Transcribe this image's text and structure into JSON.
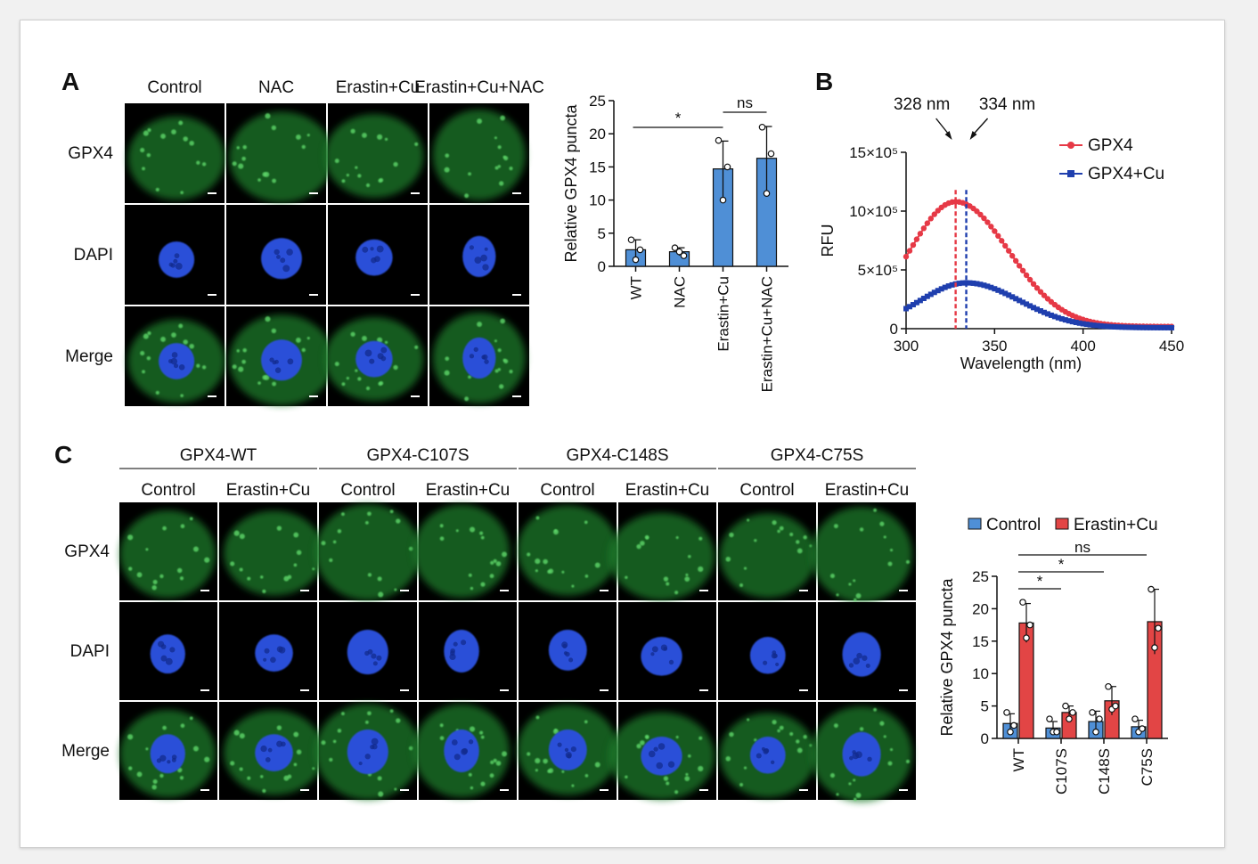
{
  "panels": {
    "a": "A",
    "b": "B",
    "c": "C"
  },
  "panel_a": {
    "columns": [
      "Control",
      "NAC",
      "Erastin+Cu",
      "Erastin+Cu+NAC"
    ],
    "rows": [
      "GPX4",
      "DAPI",
      "Merge"
    ]
  },
  "panel_c": {
    "groups": [
      "GPX4-WT",
      "GPX4-C107S",
      "GPX4-C148S",
      "GPX4-C75S"
    ],
    "columns": [
      "Control",
      "Erastin+Cu",
      "Control",
      "Erastin+Cu",
      "Control",
      "Erastin+Cu",
      "Control",
      "Erastin+Cu"
    ],
    "rows": [
      "GPX4",
      "DAPI",
      "Merge"
    ]
  },
  "colors": {
    "gpx4_label": "#4caf50",
    "dapi_label": "#2140c8",
    "bar_blue": "#4f8fd6",
    "bar_red": "#e24545",
    "line_red": "#e63946",
    "line_blue": "#1f3fae"
  },
  "chart_data": [
    {
      "id": "A-bar",
      "type": "bar",
      "categories": [
        "WT",
        "NAC",
        "Erastin+Cu",
        "Erastin+Cu+NAC"
      ],
      "values": [
        2.5,
        2.2,
        14.7,
        16.3
      ],
      "errors": [
        1.5,
        0.6,
        4.2,
        4.8
      ],
      "points": [
        [
          4,
          1,
          2.5
        ],
        [
          2.8,
          2.2,
          1.6
        ],
        [
          19,
          10,
          15
        ],
        [
          21,
          11,
          17
        ]
      ],
      "ylabel": "Relative GPX4 puncta",
      "ylim": [
        0,
        25
      ],
      "yticks": [
        0,
        5,
        10,
        15,
        20,
        25
      ],
      "significance": [
        {
          "from": 0,
          "to": 2,
          "label": "*"
        },
        {
          "from": 2,
          "to": 3,
          "label": "ns"
        }
      ]
    },
    {
      "id": "B-line",
      "type": "line",
      "xlabel": "Wavelength (nm)",
      "ylabel": "RFU",
      "xlim": [
        300,
        450
      ],
      "ylim": [
        0,
        1500000
      ],
      "xticks": [
        300,
        350,
        400,
        450
      ],
      "yticks": [
        0,
        500000,
        1000000,
        1500000
      ],
      "ytick_labels": [
        "0",
        "5×10⁵",
        "10×10⁵",
        "15×10⁵"
      ],
      "series": [
        {
          "name": "GPX4",
          "peak_x": 328,
          "peak_y": 1080000,
          "base_y": 18000
        },
        {
          "name": "GPX4+Cu",
          "peak_x": 334,
          "peak_y": 390000,
          "base_y": 8000
        }
      ],
      "annotations": [
        {
          "x": 328,
          "label": "328 nm"
        },
        {
          "x": 334,
          "label": "334 nm"
        }
      ]
    },
    {
      "id": "C-bar",
      "type": "bar",
      "categories": [
        "WT",
        "C107S",
        "C148S",
        "C75S"
      ],
      "series": [
        {
          "name": "Control",
          "values": [
            2.3,
            1.6,
            2.6,
            1.8
          ],
          "errors": [
            1.5,
            1.0,
            1.6,
            1.0
          ],
          "points": [
            [
              4,
              1,
              2
            ],
            [
              3,
              1,
              1
            ],
            [
              4,
              1,
              3
            ],
            [
              3,
              1,
              1.5
            ]
          ]
        },
        {
          "name": "Erastin+Cu",
          "values": [
            17.8,
            4.0,
            5.8,
            18.0
          ],
          "errors": [
            3.0,
            1.0,
            2.2,
            5.0
          ],
          "points": [
            [
              21,
              15.5,
              17.5
            ],
            [
              5,
              3,
              4
            ],
            [
              8,
              4.5,
              5
            ],
            [
              23,
              14,
              17
            ]
          ]
        }
      ],
      "ylabel": "Relative GPX4 puncta",
      "ylim": [
        0,
        25
      ],
      "yticks": [
        0,
        5,
        10,
        15,
        20,
        25
      ],
      "significance": [
        {
          "from": 0,
          "to": 1,
          "label": "*"
        },
        {
          "from": 0,
          "to": 2,
          "label": "*"
        },
        {
          "from": 0,
          "to": 3,
          "label": "ns"
        }
      ]
    }
  ]
}
